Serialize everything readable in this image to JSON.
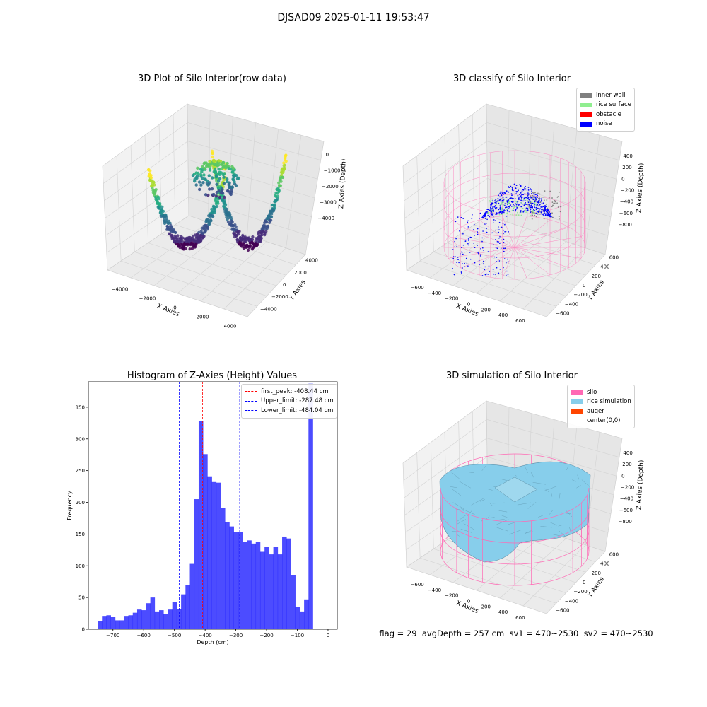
{
  "figure": {
    "suptitle": "DJSAD09 2025-01-11 19:53:47",
    "footer": {
      "text": "flag = 29  avgDepth = 257 cm  sv1 = 470~2530  sv2 = 470~2530"
    }
  },
  "chart_data": [
    {
      "type": "scatter",
      "title": "3D Plot of Silo Interior(row data)",
      "xlabel": "X Axies",
      "ylabel": "Y Axies",
      "zlabel": "Z Axies (Depth)",
      "x_ticks": [
        "−4000",
        "−2000",
        "0",
        "2000",
        "4000"
      ],
      "y_ticks": [
        "−4000",
        "−2000",
        "0",
        "2000",
        "4000"
      ],
      "z_ticks": [
        "0",
        "−1000",
        "−2000",
        "−3000",
        "−4000"
      ],
      "xlim": [
        -4500,
        4500
      ],
      "ylim": [
        -4500,
        4500
      ],
      "zlim": [
        -4800,
        200
      ],
      "colormap": "viridis",
      "description_series": [
        "outer bowl points",
        "central peak points"
      ]
    },
    {
      "type": "scatter",
      "title": "3D classify of Silo Interior",
      "xlabel": "X Axies",
      "ylabel": "Y Axies",
      "zlabel": "Z Axies (Depth)",
      "x_ticks": [
        "−600",
        "−400",
        "−200",
        "0",
        "200",
        "400",
        "600"
      ],
      "y_ticks": [
        "−600",
        "−400",
        "−200",
        "0",
        "200",
        "400",
        "600"
      ],
      "z_ticks": [
        "400",
        "200",
        "0",
        "−200",
        "−400",
        "−600",
        "−800"
      ],
      "xlim": [
        -700,
        700
      ],
      "ylim": [
        -700,
        700
      ],
      "zlim": [
        -900,
        450
      ],
      "legend": [
        {
          "label": "inner wall",
          "color": "#808080"
        },
        {
          "label": "rice surface",
          "color": "#90ee90"
        },
        {
          "label": "obstacle",
          "color": "#ff0000"
        },
        {
          "label": "noise",
          "color": "#0000ff"
        }
      ],
      "silo_wireframe_color": "#ff69b4"
    },
    {
      "type": "bar",
      "title": "Histogram of Z-Axies (Height) Values",
      "xlabel": "Depth (cm)",
      "ylabel": "Frequency",
      "xlim": [
        -780,
        30
      ],
      "ylim": [
        0,
        390
      ],
      "x_ticks": [
        -700,
        -600,
        -500,
        -400,
        -300,
        -200,
        -100,
        0
      ],
      "y_ticks": [
        0,
        50,
        100,
        150,
        200,
        250,
        300,
        350
      ],
      "bar_color": "#0000ff",
      "bin_start": -750,
      "bin_width": 14.3,
      "values": [
        13,
        21,
        22,
        20,
        14,
        14,
        21,
        22,
        26,
        31,
        30,
        41,
        50,
        28,
        30,
        24,
        31,
        43,
        32,
        55,
        70,
        103,
        205,
        328,
        276,
        241,
        232,
        231,
        191,
        169,
        162,
        153,
        153,
        138,
        140,
        135,
        138,
        122,
        130,
        118,
        130,
        118,
        146,
        143,
        85,
        35,
        28,
        47,
        387
      ],
      "vlines": [
        {
          "label": "first_peak: -408.44 cm",
          "x": -408.44,
          "color": "#ff0000"
        },
        {
          "label": "Upper_limit: -287.48 cm",
          "x": -287.48,
          "color": "#0000ff"
        },
        {
          "label": "Lower_limit: -484.04 cm",
          "x": -484.04,
          "color": "#0000ff"
        }
      ]
    },
    {
      "type": "area",
      "title": "3D simulation of Silo Interior",
      "xlabel": "X Axies",
      "ylabel": "Y Axies",
      "zlabel": "Z Axies (Depth)",
      "x_ticks": [
        "−600",
        "−400",
        "−200",
        "0",
        "200",
        "400",
        "600"
      ],
      "y_ticks": [
        "−600",
        "−400",
        "−200",
        "0",
        "200",
        "400",
        "600"
      ],
      "z_ticks": [
        "400",
        "200",
        "0",
        "−200",
        "−400",
        "−600",
        "−800"
      ],
      "legend": [
        {
          "label": "silo",
          "color": "#ff69b4"
        },
        {
          "label": "rice simulation",
          "color": "#87ceeb"
        },
        {
          "label": "auger",
          "color": "#ff4500"
        },
        {
          "label": "center(0,0)",
          "color": "#ffffff"
        }
      ]
    }
  ]
}
